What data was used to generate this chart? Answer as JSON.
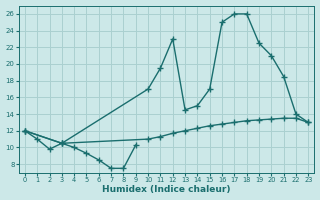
{
  "xlabel": "Humidex (Indice chaleur)",
  "background_color": "#cce8e8",
  "grid_color": "#aad0d0",
  "line_color": "#1a6e6e",
  "xlim": [
    -0.5,
    23.5
  ],
  "ylim": [
    7,
    27
  ],
  "yticks": [
    8,
    10,
    12,
    14,
    16,
    18,
    20,
    22,
    24,
    26
  ],
  "xticks": [
    0,
    1,
    2,
    3,
    4,
    5,
    6,
    7,
    8,
    9,
    10,
    11,
    12,
    13,
    14,
    15,
    16,
    17,
    18,
    19,
    20,
    21,
    22,
    23
  ],
  "series": [
    {
      "x": [
        0,
        1,
        2,
        3,
        4,
        5,
        6,
        7,
        8,
        9
      ],
      "y": [
        12,
        11,
        9.8,
        10.5,
        10,
        9.3,
        8.5,
        7.5,
        7.5,
        10.3
      ]
    },
    {
      "x": [
        0,
        3,
        10,
        11,
        12,
        13,
        14,
        15,
        16,
        17,
        18,
        19,
        20,
        21,
        22,
        23
      ],
      "y": [
        12,
        10.5,
        11,
        11.3,
        11.7,
        12.0,
        12.3,
        12.6,
        12.8,
        13.0,
        13.2,
        13.3,
        13.4,
        13.5,
        13.5,
        13.0
      ]
    },
    {
      "x": [
        0,
        3,
        10,
        11,
        12,
        13,
        14,
        15,
        16,
        17,
        18,
        19,
        20,
        21,
        22,
        23
      ],
      "y": [
        12,
        10.5,
        17.0,
        19.5,
        23.0,
        14.5,
        15.0,
        17.0,
        25.0,
        26.0,
        26.0,
        22.5,
        21.0,
        18.5,
        14.0,
        13.0
      ]
    }
  ]
}
